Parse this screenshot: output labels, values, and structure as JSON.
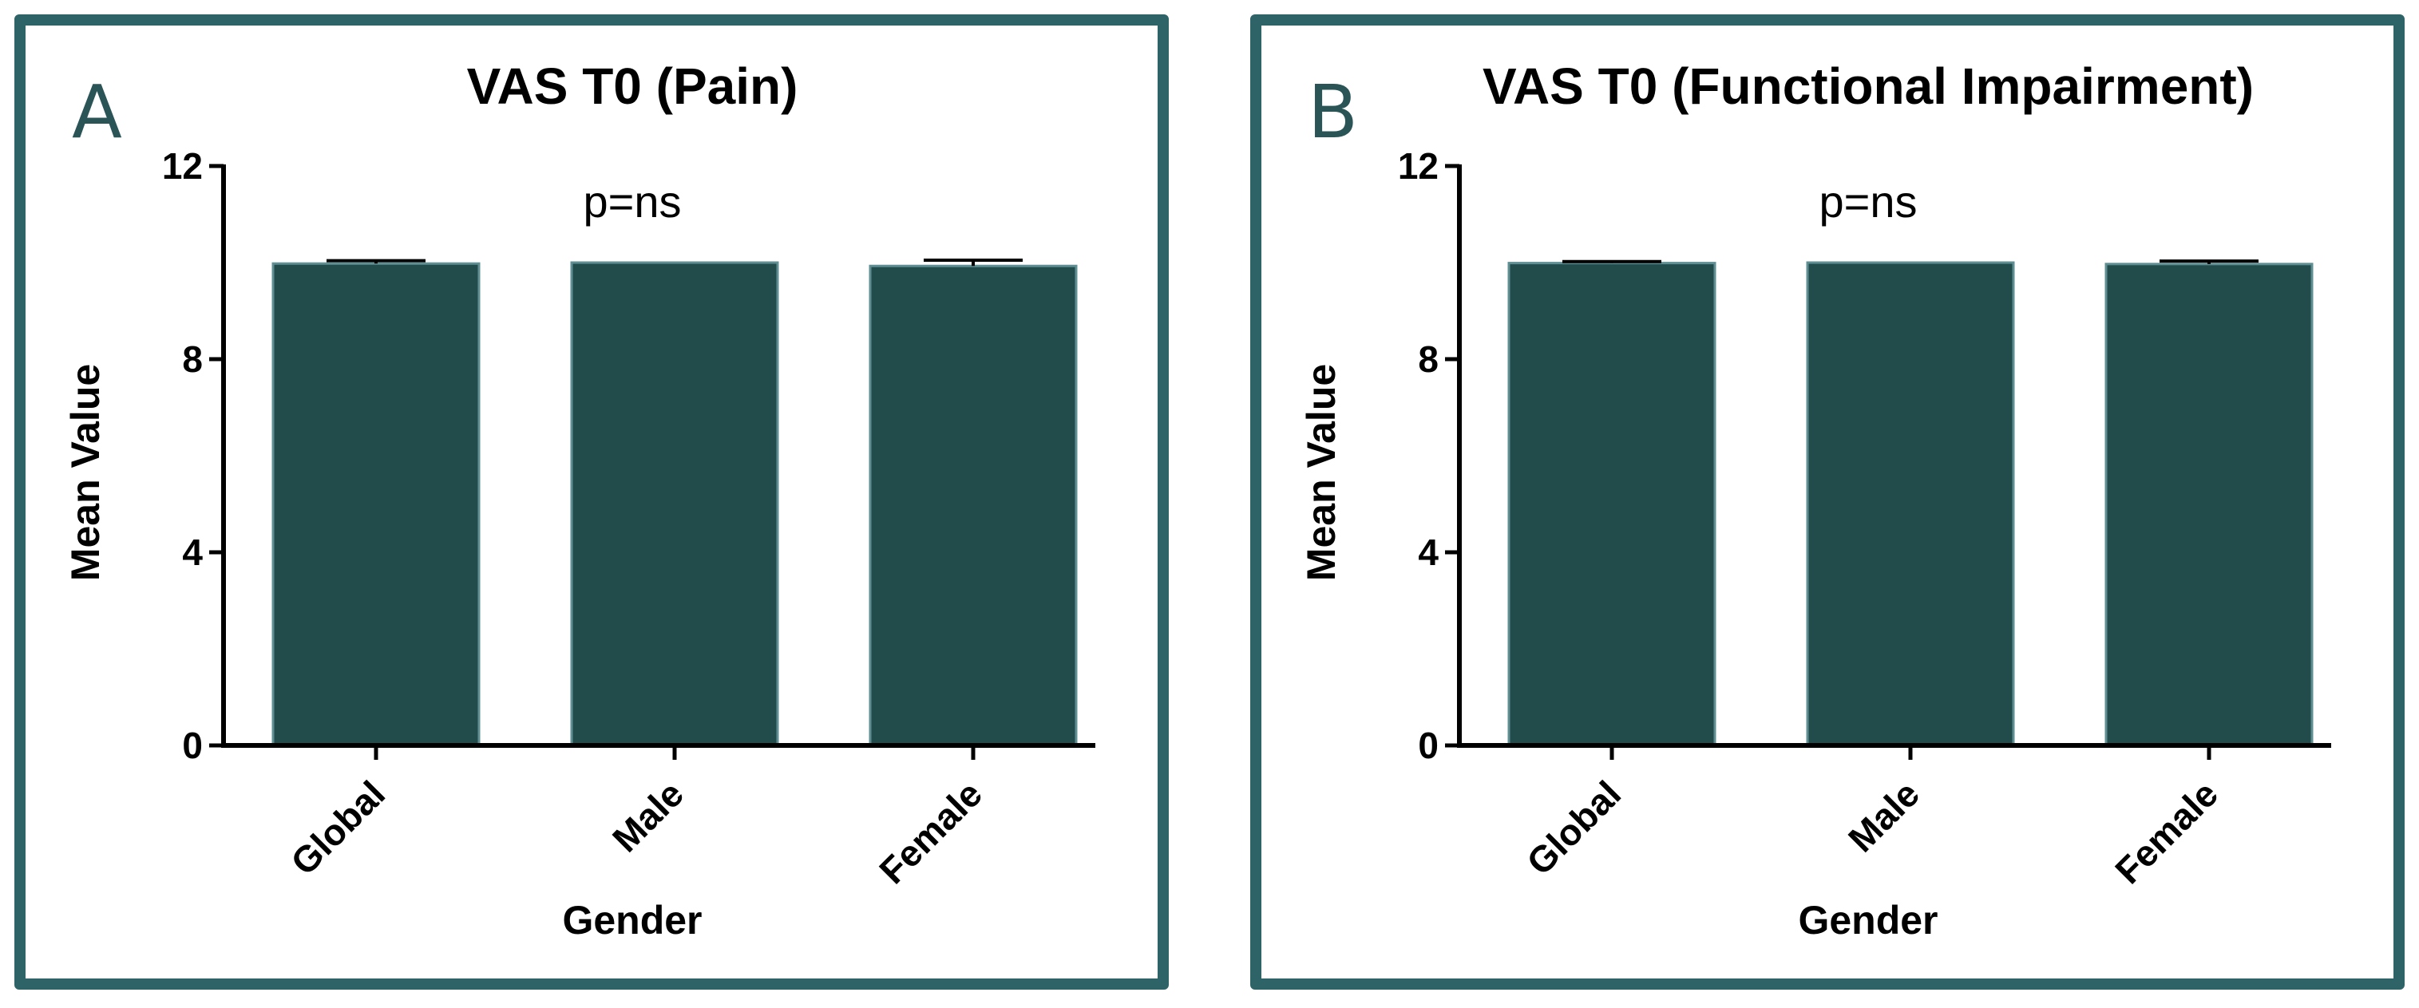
{
  "colors": {
    "bar": "#224b4c",
    "bar_edge": "#5f8f93",
    "frame": "#2e6468",
    "panel_letter": "#2b5457"
  },
  "chart_data": [
    {
      "type": "bar",
      "panel_label": "A",
      "title": "VAS T0 (Pain)",
      "annotation": "p=ns",
      "xlabel": "Gender",
      "ylabel": "Mean Value",
      "ylim": [
        0,
        12
      ],
      "yticks": [
        0,
        4,
        8,
        12
      ],
      "categories": [
        "Global",
        "Male",
        "Female"
      ],
      "values": [
        9.98,
        10.0,
        9.93
      ],
      "errors": [
        0.06,
        0.0,
        0.12
      ]
    },
    {
      "type": "bar",
      "panel_label": "B",
      "title": "VAS T0 (Functional Impairment)",
      "annotation": "p=ns",
      "xlabel": "Gender",
      "ylabel": "Mean Value",
      "ylim": [
        0,
        12
      ],
      "yticks": [
        0,
        4,
        8,
        12
      ],
      "categories": [
        "Global",
        "Male",
        "Female"
      ],
      "values": [
        9.99,
        10.0,
        9.97
      ],
      "errors": [
        0.03,
        0.0,
        0.06
      ]
    }
  ]
}
